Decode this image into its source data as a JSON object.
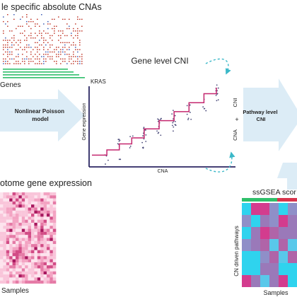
{
  "panels": {
    "cna_title": "le specific absolute CNAs",
    "genes_label": "Genes",
    "model_arrow_label": "Nonlinear Poisson model",
    "expression_title": "otome gene expression",
    "expression_xlabel": "Samples",
    "cni_title": "Gene level CNI",
    "cni_gene": "KRAS",
    "cni_ylabel": "Gene expression",
    "cni_xlabel": "CNA",
    "side_cni": "CNI",
    "side_plus": "+",
    "side_cna": "CNA",
    "pathway_arrow_label": "Pathway level CNI",
    "ssgsea_title": "ssGSEA scor",
    "ssgsea_ylabel": "CN driven pathways",
    "ssgsea_xlabel": "Samples"
  },
  "colors": {
    "arrow_fill": "#dcecf6",
    "step_line": "#c4276f",
    "axis": "#2b2663",
    "dashed_arrow": "#3ab8c8",
    "heat_pink": "#e07aa8",
    "heat_cyan": "#2fd3ee",
    "bar_green": "#2fbf6a",
    "bar_red": "#d8344c"
  },
  "chart_data": {
    "type": "scatter",
    "title": "Gene level CNI",
    "subtitle": "KRAS",
    "xlabel": "CNA",
    "ylabel": "Gene expression",
    "step_levels": [
      0.1,
      0.17,
      0.25,
      0.33,
      0.45,
      0.56,
      0.68,
      0.8,
      0.92,
      1.0
    ],
    "step_breaks": [
      0.12,
      0.22,
      0.32,
      0.42,
      0.54,
      0.66,
      0.78,
      0.9,
      1.0
    ]
  }
}
